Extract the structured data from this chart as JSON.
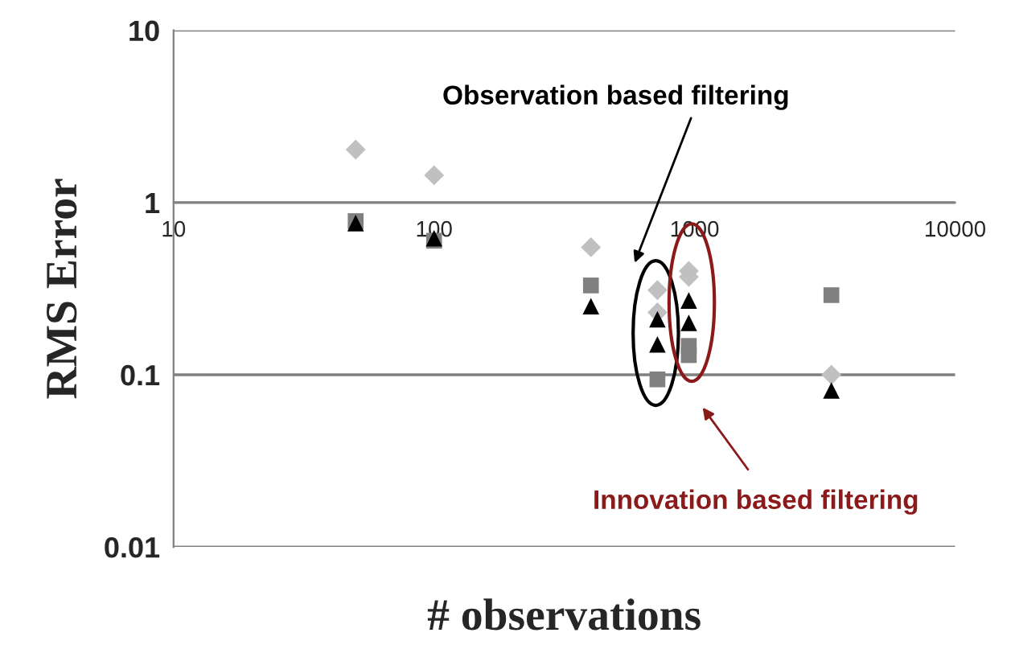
{
  "chart_data": {
    "type": "scatter",
    "xlabel": "# observations",
    "ylabel": "RMS Error",
    "log": "xy",
    "grid": "y",
    "xlim": [
      10,
      10000
    ],
    "xticks": [
      10,
      100,
      1000,
      10000
    ],
    "ylim": [
      0.01,
      10
    ],
    "yticks": [
      0.01,
      0.1,
      1,
      10
    ],
    "series": [
      {
        "color": "#c0c0c0",
        "marker": "diamond",
        "x": [
          50,
          100,
          400,
          720,
          720,
          950,
          950,
          3350
        ],
        "values": [
          2.03,
          1.44,
          0.55,
          0.31,
          0.23,
          0.4,
          0.37,
          0.1
        ]
      },
      {
        "color": "#808080",
        "marker": "square",
        "x": [
          50,
          100,
          400,
          720,
          950,
          950,
          3350
        ],
        "values": [
          0.78,
          0.6,
          0.33,
          0.094,
          0.147,
          0.13,
          0.29
        ]
      },
      {
        "color": "#000000",
        "marker": "triangle",
        "x": [
          50,
          100,
          400,
          720,
          720,
          950,
          950,
          3350
        ],
        "values": [
          0.76,
          0.62,
          0.25,
          0.21,
          0.15,
          0.27,
          0.2,
          0.081
        ]
      }
    ],
    "annotations": [
      "Observation based filtering",
      "Innovation based filtering"
    ]
  }
}
